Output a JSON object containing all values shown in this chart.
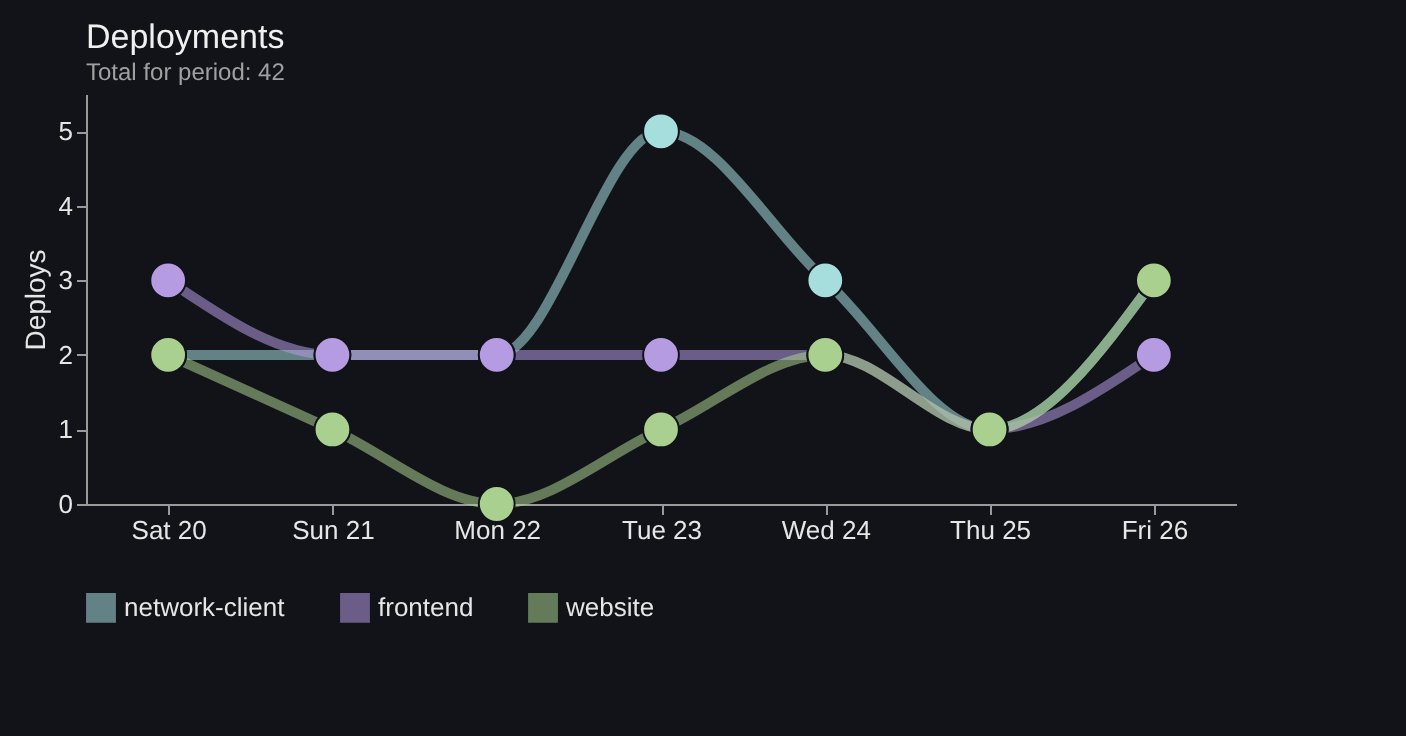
{
  "chart_data": {
    "type": "line",
    "title": "Deployments",
    "subtitle": "Total for period: 42",
    "ylabel": "Deploys",
    "categories": [
      "Sat 20",
      "Sun 21",
      "Mon 22",
      "Tue 23",
      "Wed 24",
      "Thu 25",
      "Fri 26"
    ],
    "series": [
      {
        "name": "network-client",
        "color": "#a6dede",
        "values": [
          2,
          2,
          2,
          5,
          3,
          1,
          3
        ]
      },
      {
        "name": "frontend",
        "color": "#b59be2",
        "values": [
          3,
          2,
          2,
          2,
          2,
          1,
          2
        ]
      },
      {
        "name": "website",
        "color": "#a9d08e",
        "values": [
          2,
          1,
          0,
          1,
          2,
          1,
          3
        ]
      }
    ],
    "ylim": [
      0,
      5.5
    ],
    "yticks": [
      0,
      1,
      2,
      3,
      4,
      5
    ],
    "grid": false,
    "legend": "bottom",
    "marker": "circle",
    "line_style": "solid"
  }
}
